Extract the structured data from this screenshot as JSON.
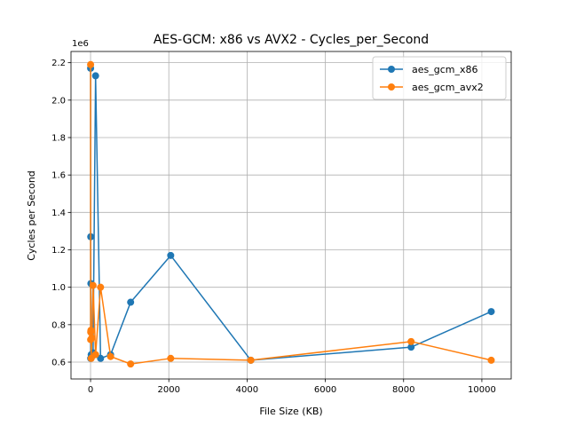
{
  "chart_data": {
    "type": "line",
    "title": "AES-GCM: x86 vs AVX2 - Cycles_per_Second",
    "xlabel": "File Size (KB)",
    "ylabel": "Cycles per Second",
    "y_offset_label": "1e6",
    "xlim": [
      -500,
      10750
    ],
    "ylim": [
      0.51,
      2.26
    ],
    "y_scale_factor": 1000000,
    "xticks": [
      0,
      2000,
      4000,
      6000,
      8000,
      10000
    ],
    "xtick_labels": [
      "0",
      "2000",
      "4000",
      "6000",
      "8000",
      "10000"
    ],
    "yticks": [
      0.6,
      0.8,
      1.0,
      1.2,
      1.4,
      1.6,
      1.8,
      2.0,
      2.2
    ],
    "ytick_labels": [
      "0.6",
      "0.8",
      "1.0",
      "1.2",
      "1.4",
      "1.6",
      "1.8",
      "2.0",
      "2.2"
    ],
    "grid": true,
    "legend_position": "top-right",
    "series": [
      {
        "name": "aes_gcm_x86",
        "color": "#1f77b4",
        "x": [
          1,
          2,
          4,
          8,
          16,
          32,
          64,
          128,
          256,
          512,
          1024,
          2048,
          4096,
          8192,
          10240
        ],
        "y": [
          2.17,
          0.62,
          1.27,
          1.02,
          0.64,
          0.63,
          0.65,
          2.13,
          0.62,
          0.64,
          0.92,
          1.17,
          0.61,
          0.68,
          0.87
        ]
      },
      {
        "name": "aes_gcm_avx2",
        "color": "#ff7f0e",
        "x": [
          1,
          2,
          4,
          8,
          16,
          32,
          64,
          128,
          256,
          512,
          1024,
          2048,
          4096,
          8192,
          10240
        ],
        "y": [
          2.19,
          0.72,
          0.76,
          0.77,
          0.62,
          0.73,
          1.01,
          0.64,
          1.0,
          0.63,
          0.59,
          0.62,
          0.61,
          0.71,
          0.61
        ]
      }
    ]
  }
}
